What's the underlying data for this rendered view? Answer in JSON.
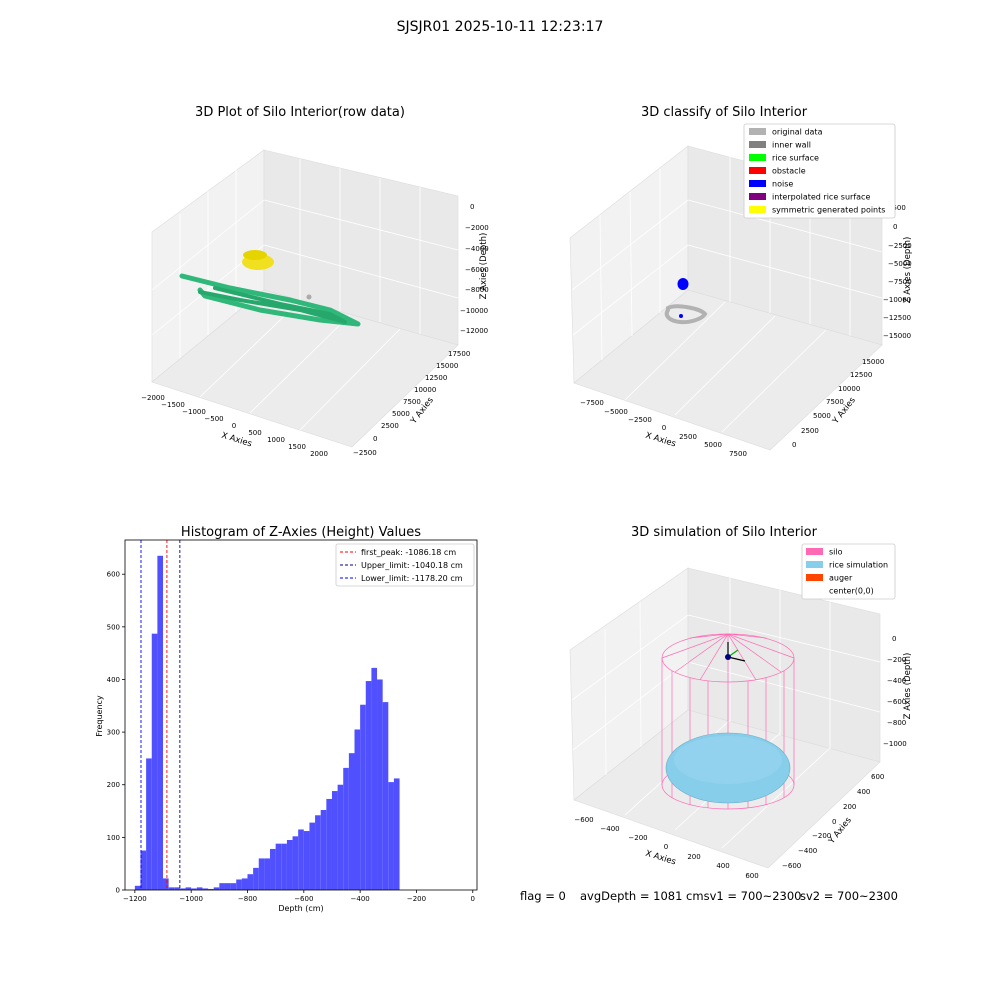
{
  "suptitle": "SJSJR01 2025-10-11 12:23:17",
  "panels": {
    "raw": {
      "title": "3D Plot of Silo Interior(row data)",
      "xlabel": "X Axies",
      "ylabel": "Y Axies",
      "zlabel": "Z Axies (Depth)",
      "xticks": [
        "−2000",
        "−1500",
        "−1000",
        "−500",
        "0",
        "500",
        "1000",
        "1500",
        "2000"
      ],
      "yticks": [
        "−2500",
        "0",
        "2500",
        "5000",
        "7500",
        "10000",
        "12500",
        "15000",
        "17500"
      ],
      "zticks": [
        "0",
        "−2000",
        "−4000",
        "−6000",
        "−8000",
        "−10000",
        "−12000"
      ],
      "colors": {
        "points": "#2fb87a",
        "cluster": "#f0e020",
        "center": "#aaaaaa"
      }
    },
    "classify": {
      "title": "3D classify of Silo Interior",
      "xlabel": "X Axies",
      "ylabel": "Y Axies",
      "zlabel": "Z Axies (Depth)",
      "xticks": [
        "−7500",
        "−5000",
        "−2500",
        "0",
        "2500",
        "5000",
        "7500"
      ],
      "yticks": [
        "0",
        "2500",
        "5000",
        "7500",
        "10000",
        "12500",
        "15000"
      ],
      "zticks": [
        "2500",
        "0",
        "−2500",
        "−5000",
        "−7500",
        "−10000",
        "−12500",
        "−15000"
      ],
      "legend": [
        {
          "label": "original data",
          "color": "#b2b2b2"
        },
        {
          "label": "inner wall",
          "color": "#808080"
        },
        {
          "label": "rice surface",
          "color": "#00ff00"
        },
        {
          "label": "obstacle",
          "color": "#ff0000"
        },
        {
          "label": "noise",
          "color": "#0000ff"
        },
        {
          "label": "interpolated rice surface",
          "color": "#800080"
        },
        {
          "label": "symmetric generated points",
          "color": "#ffff00"
        }
      ]
    },
    "simulation": {
      "title": "3D simulation of Silo Interior",
      "xlabel": "X Axies",
      "ylabel": "Y Axies",
      "zlabel": "Z Axies (Depth)",
      "xticks": [
        "−600",
        "−400",
        "−200",
        "0",
        "200",
        "400",
        "600"
      ],
      "yticks": [
        "−600",
        "−400",
        "−200",
        "0",
        "200",
        "400",
        "600"
      ],
      "zticks": [
        "0",
        "−200",
        "−400",
        "−600",
        "−800",
        "−1000"
      ],
      "legend": [
        {
          "label": "silo",
          "color": "#ff69b4"
        },
        {
          "label": "rice simulation",
          "color": "#87ceeb"
        },
        {
          "label": "auger",
          "color": "#ff4500"
        },
        {
          "label": "center(0,0)",
          "color": "#ffffff"
        }
      ]
    }
  },
  "chart_data": {
    "type": "bar",
    "title": "Histogram of Z-Axies (Height) Values",
    "xlabel": "Depth (cm)",
    "ylabel": "Frequency",
    "xlim": [
      -1235,
      15
    ],
    "ylim": [
      0,
      665
    ],
    "xticks": [
      -1200,
      -1000,
      -800,
      -600,
      -400,
      -200,
      0
    ],
    "xtick_labels": [
      "−1200",
      "−1000",
      "−800",
      "−600",
      "−400",
      "−200",
      "0"
    ],
    "yticks": [
      0,
      100,
      200,
      300,
      400,
      500,
      600
    ],
    "bin_start": -1200,
    "bin_width": 20,
    "values": [
      8,
      75,
      250,
      487,
      635,
      22,
      5,
      5,
      3,
      5,
      3,
      5,
      3,
      2,
      5,
      13,
      13,
      13,
      20,
      22,
      30,
      42,
      60,
      60,
      78,
      88,
      88,
      95,
      102,
      115,
      112,
      128,
      142,
      152,
      173,
      188,
      200,
      232,
      260,
      305,
      352,
      397,
      422,
      400,
      357,
      205,
      212
    ],
    "bar_color": "#5050ff",
    "lines": [
      {
        "label": "first_peak: -1086.18 cm",
        "x": -1086.18,
        "color": "#ff0000"
      },
      {
        "label": "Upper_limit: -1040.18 cm",
        "x": -1040.18,
        "color": "#000080"
      },
      {
        "label": "Lower_limit: -1178.20 cm",
        "x": -1178.2,
        "color": "#0000ff"
      }
    ]
  },
  "status": {
    "flag": "flag = 0",
    "avg": "avgDepth = 1081 cmsv1 = 700~2300",
    "sv2": "sv2 = 700~2300"
  }
}
